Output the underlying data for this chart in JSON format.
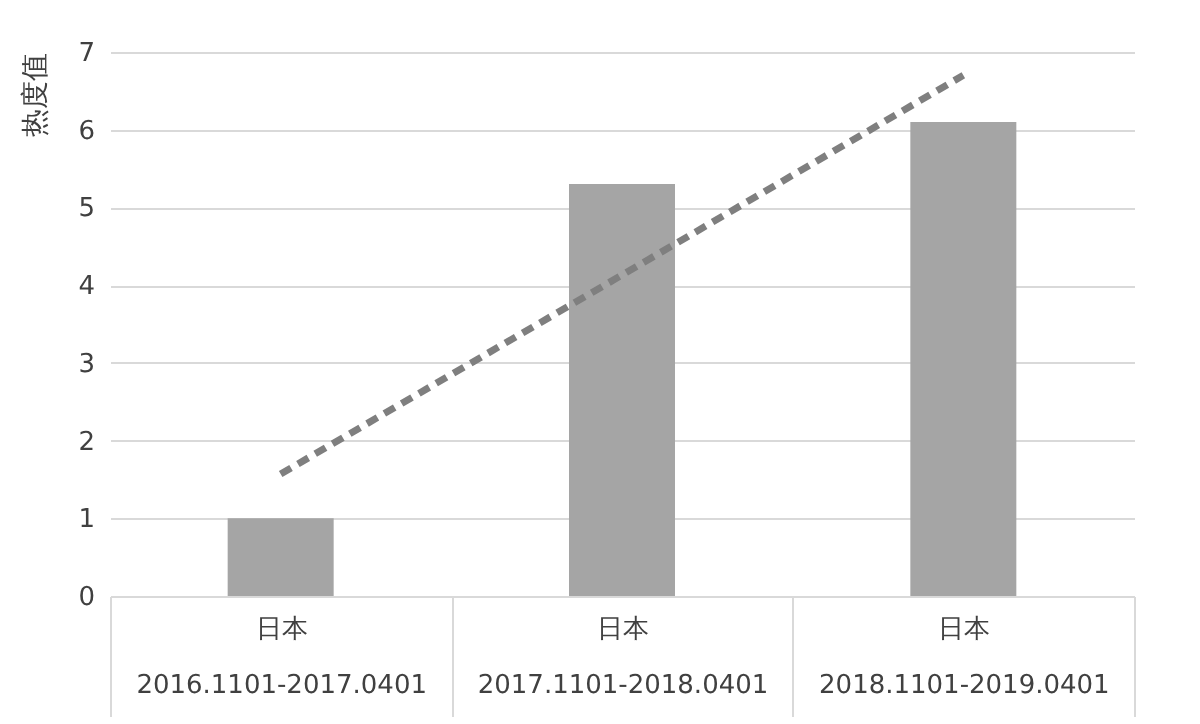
{
  "chart_data": {
    "type": "bar",
    "ylabel": "热度值",
    "categories": [
      "日本\n2016.1101-2017.0401",
      "日本\n2017.1101-2018.0401",
      "日本\n2018.1101-2019.0401"
    ],
    "series": [
      {
        "color": "#a5a5a5",
        "values": [
          1.0,
          5.3,
          6.1
        ]
      },
      {
        "type": "line",
        "color": "#7f7f7f",
        "line_style": "dashed",
        "x": [
          "日本\n2016.1101-2017.0401",
          "日本\n2017.1101-2018.0401",
          "日本\n2018.1101-2019.0401"
        ],
        "values": [
          1.57,
          4.13,
          6.7
        ]
      }
    ],
    "ylim": [
      0,
      7
    ],
    "yticks": [
      0,
      1,
      2,
      3,
      4,
      5,
      6,
      7
    ],
    "grid": "y"
  }
}
